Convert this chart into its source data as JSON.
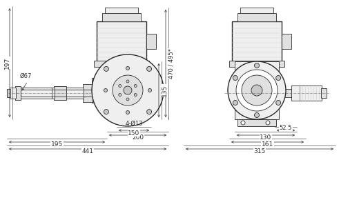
{
  "bg_color": "#ffffff",
  "lc": "#2a2a2a",
  "figsize": [
    5.2,
    3.06
  ],
  "dpi": 100,
  "lw": 0.6,
  "lw_thick": 1.0
}
